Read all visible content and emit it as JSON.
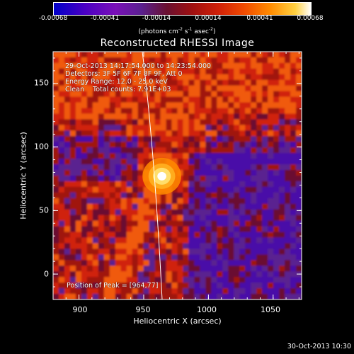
{
  "colorbar": {
    "ticks": [
      "-0.00068",
      "-0.00041",
      "-0.00014",
      "0.00014",
      "0.00041",
      "0.00068"
    ],
    "unit_prefix": "(photons cm",
    "unit_sup1": "-2",
    "unit_mid1": " s",
    "unit_sup2": "-1",
    "unit_mid2": " asec",
    "unit_sup3": "-2",
    "unit_suffix": ")"
  },
  "plot": {
    "title": "Reconstructed RHESSI Image",
    "annotations": {
      "time_range": "29-Oct-2013 14:17:54.000 to 14:23:54.000",
      "detectors": "Detectors: 3F 5F 6F 7F 8F 9F, Att 0",
      "energy_range": "Energy Range: 12.0 - 25.0 keV",
      "clean_counts": "Clean    Total counts: 7.91E+03",
      "peak_position": "Position of Peak = [964,77]"
    },
    "xlabel": "Heliocentric X (arcsec)",
    "ylabel": "Heliocentric Y (arcsec)",
    "xticks": [
      "900",
      "950",
      "1000",
      "1050"
    ],
    "yticks": [
      "150",
      "100",
      "50",
      "0"
    ],
    "xlim": [
      880,
      1072
    ],
    "ylim": [
      -20,
      175
    ],
    "peak": {
      "x": 964,
      "y": 77
    },
    "colors": {
      "low_negative": "#0000c8",
      "negative": "#5a2090",
      "zero": "#6a1030",
      "positive": "#d02008",
      "high": "#ff8a00",
      "peak": "#ffffff"
    }
  },
  "footer": {
    "date": "30-Oct-2013 10:30"
  }
}
